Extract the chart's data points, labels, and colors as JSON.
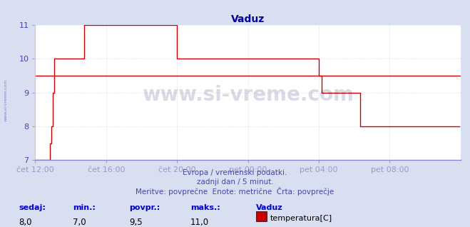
{
  "title": "Vaduz",
  "title_color": "#000099",
  "bg_color": "#d8dff0",
  "plot_bg_color": "#ffffff",
  "grid_color": "#cccccc",
  "line_color": "#cc0000",
  "avg_line_color": "#cc0000",
  "avg_value": 9.5,
  "ylim": [
    7,
    11
  ],
  "yticks": [
    7,
    8,
    9,
    10,
    11
  ],
  "xlabel_color": "#4444aa",
  "ylabel_color": "#4444aa",
  "xaxis_line_color": "#9999cc",
  "xtick_labels": [
    "čet 12:00",
    "čet 16:00",
    "čet 20:00",
    "pet 00:00",
    "pet 04:00",
    "pet 08:00"
  ],
  "xtick_positions": [
    0,
    48,
    96,
    144,
    192,
    240
  ],
  "total_points": 288,
  "watermark_text": "www.si-vreme.com",
  "watermark_color": "#000066",
  "watermark_alpha": 0.15,
  "sidebar_text": "www.si-vreme.com",
  "footer_line1": "Evropa / vremenski podatki.",
  "footer_line2": "zadnji dan / 5 minut.",
  "footer_line3": "Meritve: povprečne  Enote: metrične  Črta: povprečje",
  "footer_color": "#4444aa",
  "stats_labels": [
    "sedaj:",
    "min.:",
    "povpr.:",
    "maks.:"
  ],
  "stats_values": [
    "8,0",
    "7,0",
    "9,5",
    "11,0"
  ],
  "stats_label_color": "#0000cc",
  "stats_value_color": "#000000",
  "legend_station": "Vaduz",
  "legend_param": "temperatura[C]",
  "legend_color": "#cc0000",
  "temperature_data": [
    7.0,
    7.0,
    7.0,
    7.0,
    7.0,
    7.0,
    7.0,
    7.0,
    7.0,
    7.0,
    7.5,
    8.0,
    9.0,
    10.0,
    10.0,
    10.0,
    10.0,
    10.0,
    10.0,
    10.0,
    10.0,
    10.0,
    10.0,
    10.0,
    10.0,
    10.0,
    10.0,
    10.0,
    10.0,
    10.0,
    10.0,
    10.0,
    10.0,
    11.0,
    11.0,
    11.0,
    11.0,
    11.0,
    11.0,
    11.0,
    11.0,
    11.0,
    11.0,
    11.0,
    11.0,
    11.0,
    11.0,
    11.0,
    11.0,
    11.0,
    11.0,
    11.0,
    11.0,
    11.0,
    11.0,
    11.0,
    11.0,
    11.0,
    11.0,
    11.0,
    11.0,
    11.0,
    11.0,
    11.0,
    11.0,
    11.0,
    11.0,
    11.0,
    11.0,
    11.0,
    11.0,
    11.0,
    11.0,
    11.0,
    11.0,
    11.0,
    11.0,
    11.0,
    11.0,
    11.0,
    11.0,
    11.0,
    11.0,
    11.0,
    11.0,
    11.0,
    11.0,
    11.0,
    11.0,
    11.0,
    11.0,
    11.0,
    11.0,
    11.0,
    11.0,
    11.0,
    10.0,
    10.0,
    10.0,
    10.0,
    10.0,
    10.0,
    10.0,
    10.0,
    10.0,
    10.0,
    10.0,
    10.0,
    10.0,
    10.0,
    10.0,
    10.0,
    10.0,
    10.0,
    10.0,
    10.0,
    10.0,
    10.0,
    10.0,
    10.0,
    10.0,
    10.0,
    10.0,
    10.0,
    10.0,
    10.0,
    10.0,
    10.0,
    10.0,
    10.0,
    10.0,
    10.0,
    10.0,
    10.0,
    10.0,
    10.0,
    10.0,
    10.0,
    10.0,
    10.0,
    10.0,
    10.0,
    10.0,
    10.0,
    10.0,
    10.0,
    10.0,
    10.0,
    10.0,
    10.0,
    10.0,
    10.0,
    10.0,
    10.0,
    10.0,
    10.0,
    10.0,
    10.0,
    10.0,
    10.0,
    10.0,
    10.0,
    10.0,
    10.0,
    10.0,
    10.0,
    10.0,
    10.0,
    10.0,
    10.0,
    10.0,
    10.0,
    10.0,
    10.0,
    10.0,
    10.0,
    10.0,
    10.0,
    10.0,
    10.0,
    10.0,
    10.0,
    10.0,
    10.0,
    10.0,
    10.0,
    10.0,
    10.0,
    10.0,
    10.0,
    10.0,
    10.0,
    9.5,
    9.5,
    9.0,
    9.0,
    9.0,
    9.0,
    9.0,
    9.0,
    9.0,
    9.0,
    9.0,
    9.0,
    9.0,
    9.0,
    9.0,
    9.0,
    9.0,
    9.0,
    9.0,
    9.0,
    9.0,
    9.0,
    9.0,
    9.0,
    9.0,
    9.0,
    9.0,
    9.0,
    8.0,
    8.0,
    8.0,
    8.0,
    8.0,
    8.0,
    8.0,
    8.0,
    8.0,
    8.0,
    8.0,
    8.0,
    8.0,
    8.0,
    8.0,
    8.0,
    8.0,
    8.0,
    8.0,
    8.0,
    8.0,
    8.0,
    8.0,
    8.0,
    8.0,
    8.0,
    8.0,
    8.0,
    8.0,
    8.0,
    8.0,
    8.0,
    8.0,
    8.0,
    8.0,
    8.0,
    8.0,
    8.0,
    8.0,
    8.0,
    8.0,
    8.0,
    8.0,
    8.0,
    8.0,
    8.0,
    8.0,
    8.0,
    8.0,
    8.0,
    8.0,
    8.0,
    8.0,
    8.0,
    8.0,
    8.0,
    8.0,
    8.0,
    8.0,
    8.0,
    8.0,
    8.0,
    8.0,
    8.0,
    8.0,
    8.0,
    8.0,
    8.0
  ]
}
